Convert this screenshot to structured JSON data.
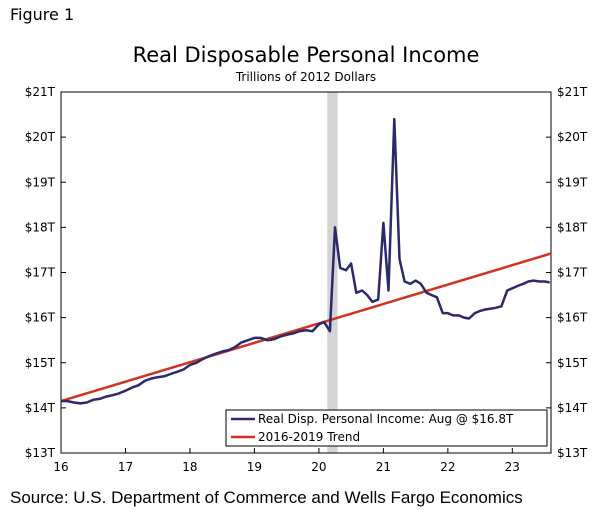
{
  "figure_label": "Figure 1",
  "source": "Source: U.S. Department of Commerce and Wells Fargo Economics",
  "colors": {
    "income": "#2b2a6b",
    "trend": "#d0341f",
    "recession": "#d4d4d4"
  },
  "chart_data": {
    "type": "line",
    "title": "Real Disposable Personal Income",
    "subtitle": "Trillions of 2012 Dollars",
    "xlabel": "",
    "ylabel": "",
    "xlim": [
      16.0,
      23.6
    ],
    "ylim": [
      13,
      21
    ],
    "x_ticks": [
      16,
      17,
      18,
      19,
      20,
      21,
      22,
      23
    ],
    "x_tick_labels": [
      "16",
      "17",
      "18",
      "19",
      "20",
      "21",
      "22",
      "23"
    ],
    "y_ticks": [
      13,
      14,
      15,
      16,
      17,
      18,
      19,
      20,
      21
    ],
    "y_tick_labels": [
      "$13T",
      "$14T",
      "$15T",
      "$16T",
      "$17T",
      "$18T",
      "$19T",
      "$20T",
      "$21T"
    ],
    "recession_band": [
      20.13,
      20.29
    ],
    "legend_position": "bottom-right",
    "series": [
      {
        "name": "Real Disp. Personal Income: Aug @ $16.8T",
        "x": [
          16.0,
          16.1,
          16.2,
          16.3,
          16.4,
          16.5,
          16.6,
          16.7,
          16.8,
          16.9,
          17.0,
          17.1,
          17.2,
          17.3,
          17.4,
          17.5,
          17.6,
          17.7,
          17.8,
          17.9,
          18.0,
          18.1,
          18.2,
          18.3,
          18.4,
          18.5,
          18.6,
          18.7,
          18.8,
          18.9,
          19.0,
          19.1,
          19.2,
          19.3,
          19.4,
          19.5,
          19.6,
          19.7,
          19.8,
          19.9,
          20.0,
          20.08,
          20.17,
          20.25,
          20.33,
          20.42,
          20.5,
          20.58,
          20.67,
          20.75,
          20.83,
          20.92,
          21.0,
          21.08,
          21.17,
          21.25,
          21.33,
          21.42,
          21.5,
          21.58,
          21.67,
          21.75,
          21.83,
          21.92,
          22.0,
          22.08,
          22.17,
          22.25,
          22.33,
          22.42,
          22.5,
          22.58,
          22.67,
          22.75,
          22.83,
          22.92,
          23.0,
          23.08,
          23.17,
          23.25,
          23.33,
          23.42,
          23.5,
          23.58
        ],
        "y": [
          14.15,
          14.15,
          14.12,
          14.1,
          14.12,
          14.18,
          14.2,
          14.25,
          14.28,
          14.32,
          14.38,
          14.45,
          14.5,
          14.6,
          14.65,
          14.68,
          14.7,
          14.75,
          14.8,
          14.85,
          14.95,
          15.0,
          15.08,
          15.15,
          15.2,
          15.25,
          15.28,
          15.35,
          15.45,
          15.5,
          15.55,
          15.55,
          15.5,
          15.52,
          15.58,
          15.62,
          15.65,
          15.7,
          15.72,
          15.7,
          15.85,
          15.9,
          15.7,
          18.0,
          17.1,
          17.05,
          17.2,
          16.55,
          16.6,
          16.5,
          16.35,
          16.4,
          18.1,
          16.6,
          20.4,
          17.3,
          16.8,
          16.75,
          16.82,
          16.75,
          16.55,
          16.5,
          16.45,
          16.1,
          16.1,
          16.05,
          16.05,
          16.0,
          15.98,
          16.1,
          16.15,
          16.18,
          16.2,
          16.22,
          16.25,
          16.6,
          16.65,
          16.7,
          16.75,
          16.8,
          16.82,
          16.8,
          16.8,
          16.78
        ]
      },
      {
        "name": "2016-2019 Trend",
        "x": [
          16.0,
          23.6
        ],
        "y": [
          14.15,
          17.42
        ]
      }
    ]
  }
}
